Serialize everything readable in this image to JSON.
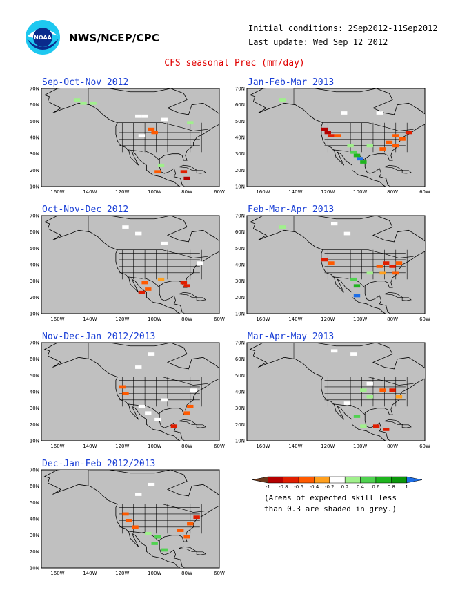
{
  "header": {
    "org": "NWS/NCEP/CPC",
    "initial_conditions": "Initial conditions: 2Sep2012-11Sep2012",
    "last_update": "Last update: Wed Sep 12 2012",
    "title": "CFS seasonal Prec (mm/day)",
    "logo_text": "NOAA"
  },
  "map_axes": {
    "lat_labels": [
      "70N",
      "60N",
      "50N",
      "40N",
      "30N",
      "20N",
      "10N"
    ],
    "lon_labels": [
      "160W",
      "140W",
      "120W",
      "100W",
      "80W",
      "60W"
    ]
  },
  "panels": [
    {
      "title": "Sep-Oct-Nov 2012",
      "id": "son"
    },
    {
      "title": "Jan-Feb-Mar 2013",
      "id": "jfm"
    },
    {
      "title": "Oct-Nov-Dec 2012",
      "id": "ond"
    },
    {
      "title": "Feb-Mar-Apr 2013",
      "id": "fma"
    },
    {
      "title": "Nov-Dec-Jan 2012/2013",
      "id": "ndj"
    },
    {
      "title": "Mar-Apr-May 2013",
      "id": "mam"
    },
    {
      "title": "Dec-Jan-Feb 2012/2013",
      "id": "djf"
    }
  ],
  "legend": {
    "labels": [
      "-1",
      "-0.8",
      "-0.6",
      "-0.4",
      "-0.2",
      "0.2",
      "0.4",
      "0.6",
      "0.8",
      "1"
    ],
    "colors": [
      "#6b3a1e",
      "#b40000",
      "#e01e00",
      "#ff5a00",
      "#ffa01e",
      "#ffffff",
      "#a0f08c",
      "#50d250",
      "#1eb41e",
      "#0a960a",
      "#1e6ee6"
    ],
    "note_line1": "(Areas of expected skill less",
    "note_line2": "than 0.3 are shaded in grey.)"
  },
  "colors": {
    "ocean_grey": "#c0c0c0",
    "title_blue": "#1a3fd6",
    "title_red": "#e00000"
  }
}
